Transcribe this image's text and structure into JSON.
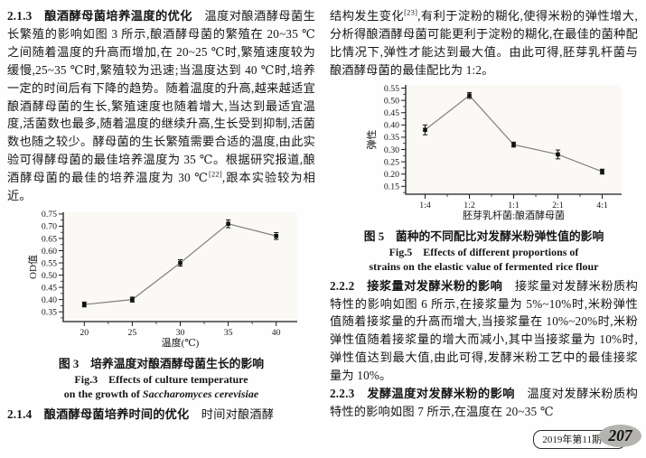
{
  "left": {
    "s213_heading": "2.1.3　酿酒酵母菌培养温度的优化",
    "s213_body1": "　温度对酿酒酵母菌生长繁殖的影响如图 3 所示,酿酒酵母菌的繁殖在 20~35 ℃之间随着温度的升高而增加,在 20~25 ℃时,繁殖速度较为缓慢,25~35 ℃时,繁殖较为迅速;当温度达到 40 ℃时,培养一定的时间后有下降的趋势。随着温度的升高,越来越适宜酿酒酵母菌的生长,繁殖速度也随着增大,当达到最适宜温度,活菌数也最多,随着温度的继续升高,生长受到抑制,活菌数也随之较少。酵母菌的生长繁殖需要合适的温度,由此实验可得酵母菌的最佳培养温度为 35 ℃。根据研究报道,酿酒酵母菌的最佳的培养温度为 30 ℃",
    "s213_cite": "[22]",
    "s213_body2": ",跟本实验较为相近。",
    "fig3_caption_cn": "图 3　培养温度对酿酒酵母菌生长的影响",
    "fig3_caption_en1": "Fig.3　Effects of culture temperature",
    "fig3_caption_en2_prefix": "on the growth of ",
    "fig3_caption_en2_species": "Saccharomyces cerevisiae",
    "s214_heading": "2.1.4　酿酒酵母菌培养时间的优化",
    "s214_body": "　时间对酿酒酵"
  },
  "right": {
    "cont_body1": "结构发生变化",
    "cont_cite": "[23]",
    "cont_body2": ",有利于淀粉的糊化,使得米粉的弹性增大,分析得酿酒酵母菌可能更利于淀粉的糊化,在最佳的菌种配比情况下,弹性才能达到最大值。由此可得,胚芽乳杆菌与酿酒酵母菌的最佳配比为 1:2。",
    "fig5_caption_cn": "图 5　菌种的不同配比对发酵米粉弹性值的影响",
    "fig5_caption_en1": "Fig.5　Effects of different proportions of",
    "fig5_caption_en2": "strains on the elastic value of fermented rice flour",
    "s222_heading": "2.2.2　接浆量对发酵米粉的影响",
    "s222_body": "　接浆量对发酵米粉质构特性的影响如图 6 所示,在接浆量为 5%~10%时,米粉弹性值随着接浆量的升高而增大,当接浆量在 10%~20%时,米粉弹性值随着接浆量的增大而减小,其中当接浆量为 10%时,弹性值达到最大值,由此可得,发酵米粉工艺中的最佳接浆量为 10%。",
    "s223_heading": "2.2.3　发酵温度对发酵米粉的影响",
    "s223_body": "　温度对发酵米粉质构特性的影响如图 7 所示,在温度在 20~35 ℃"
  },
  "footer": {
    "issue": "2019年第11期",
    "page_number": "207"
  },
  "chart_data": [
    {
      "type": "line",
      "title": "",
      "categories": [
        "20",
        "25",
        "30",
        "35",
        "40"
      ],
      "values": [
        0.38,
        0.4,
        0.55,
        0.71,
        0.66
      ],
      "errors": [
        0.01,
        0.01,
        0.013,
        0.016,
        0.014
      ],
      "xlabel": "温度(℃)",
      "ylabel": "OD值",
      "ylim": [
        0.31,
        0.757
      ],
      "ytick_min": 0.35,
      "ytick_max": 0.75,
      "ytick_step": 0.05,
      "grid": false,
      "legend": "none",
      "marker": "filled-square-with-error-bars"
    },
    {
      "type": "line",
      "title": "",
      "categories": [
        "1:4",
        "1:2",
        "1:1",
        "2:1",
        "4:1"
      ],
      "values": [
        0.38,
        0.52,
        0.32,
        0.28,
        0.21
      ],
      "errors": [
        0.02,
        0.012,
        0.01,
        0.018,
        0.01
      ],
      "xlabel": "胚芽乳杆菌:酿酒酵母菌",
      "ylabel": "弹性",
      "ylim": [
        0.118,
        0.563
      ],
      "ytick_min": 0.15,
      "ytick_max": 0.55,
      "ytick_step": 0.05,
      "grid": false,
      "legend": "none",
      "marker": "filled-square-with-error-bars"
    }
  ]
}
